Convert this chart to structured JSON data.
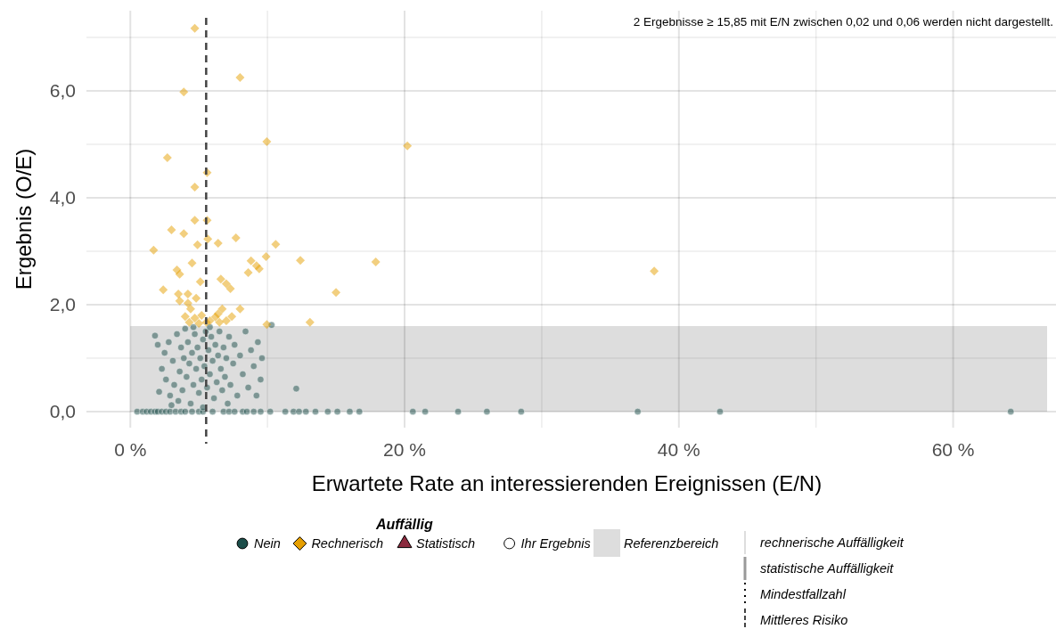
{
  "chart_data": {
    "type": "scatter",
    "xlabel": "Erwartete Rate an interessierenden Ereignissen (E/N)",
    "ylabel": "Ergebnis (O/E)",
    "legend_title": "Auffällig",
    "legend": "bottom",
    "grid": true,
    "xlim": [
      -3.2,
      67.5
    ],
    "ylim": [
      -0.3,
      7.5
    ],
    "xticks": [
      {
        "value": 0,
        "label": "0 %"
      },
      {
        "value": 10,
        "label": null
      },
      {
        "value": 20,
        "label": "20 %"
      },
      {
        "value": 30,
        "label": null
      },
      {
        "value": 40,
        "label": "40 %"
      },
      {
        "value": 50,
        "label": null
      },
      {
        "value": 60,
        "label": "60 %"
      }
    ],
    "yticks": [
      {
        "value": 0,
        "label": "0,0"
      },
      {
        "value": 1,
        "label": null
      },
      {
        "value": 2,
        "label": "2,0"
      },
      {
        "value": 3,
        "label": null
      },
      {
        "value": 4,
        "label": "4,0"
      },
      {
        "value": 5,
        "label": null
      },
      {
        "value": 6,
        "label": "6,0"
      },
      {
        "value": 7,
        "label": null
      }
    ],
    "series": [
      {
        "name": "Nein",
        "color": "#1b4d49",
        "marker": "circle",
        "x": [
          0.5,
          0.9,
          1.2,
          1.5,
          1.8,
          2.0,
          2.3,
          2.6,
          2.9,
          3.3,
          3.7,
          4.0,
          4.5,
          5.0,
          5.3,
          6.0,
          6.8,
          7.2,
          7.6,
          8.2,
          8.5,
          9.0,
          9.5,
          10.2,
          11.3,
          11.9,
          12.3,
          12.8,
          13.5,
          14.4,
          15.1,
          16.0,
          16.7,
          20.6,
          21.5,
          23.9,
          26.0,
          28.5,
          37.0,
          43.0,
          64.2,
          1.8,
          2.1,
          2.3,
          2.5,
          2.6,
          2.8,
          2.9,
          3.1,
          3.2,
          3.4,
          3.5,
          3.6,
          3.7,
          3.8,
          3.9,
          4.0,
          4.1,
          4.2,
          4.3,
          4.4,
          4.5,
          4.6,
          4.7,
          4.8,
          4.9,
          5.0,
          5.1,
          5.2,
          5.3,
          5.4,
          5.5,
          5.6,
          5.7,
          5.8,
          5.9,
          6.0,
          6.1,
          6.2,
          6.3,
          6.4,
          6.5,
          6.6,
          6.7,
          6.8,
          6.9,
          7.0,
          7.2,
          7.3,
          7.5,
          7.6,
          7.8,
          8.0,
          8.2,
          8.4,
          8.6,
          8.8,
          9.0,
          9.2,
          9.3,
          9.5,
          9.6,
          3.0,
          4.6,
          5.8,
          10.3,
          12.1,
          5.3,
          2.0,
          7.1
        ],
        "values": [
          0,
          0,
          0,
          0,
          0,
          0,
          0,
          0,
          0,
          0,
          0,
          0,
          0,
          0,
          0,
          0,
          0,
          0,
          0,
          0,
          0,
          0,
          0,
          0,
          0,
          0,
          0,
          0,
          0,
          0,
          0,
          0,
          0,
          0,
          0,
          0,
          0,
          0,
          0,
          0,
          0,
          1.42,
          0.37,
          0.8,
          1.1,
          0.6,
          1.3,
          0.3,
          0.95,
          0.5,
          1.45,
          0.2,
          0.75,
          1.2,
          0.4,
          1.0,
          1.55,
          0.65,
          1.3,
          0.9,
          0.15,
          1.1,
          0.5,
          1.45,
          0.8,
          1.2,
          0.35,
          1.0,
          0.6,
          1.35,
          0.85,
          1.5,
          0.45,
          1.15,
          0.7,
          1.4,
          0.95,
          0.25,
          1.25,
          0.55,
          1.05,
          1.5,
          0.8,
          0.4,
          1.2,
          0.65,
          1.0,
          1.4,
          0.5,
          0.9,
          1.25,
          0.3,
          1.05,
          0.7,
          1.5,
          0.45,
          1.15,
          0.85,
          0.3,
          1.3,
          0.6,
          1.0,
          0.12,
          1.58,
          1.58,
          1.62,
          0.43,
          0.08,
          1.25,
          0.15
        ]
      },
      {
        "name": "Rechnerisch",
        "color": "#e69f00",
        "marker": "diamond",
        "x": [
          4.7,
          8.0,
          3.9,
          9.95,
          20.2,
          2.7,
          5.6,
          4.7,
          4.7,
          5.6,
          3.0,
          3.9,
          7.7,
          5.65,
          6.4,
          4.9,
          10.6,
          1.7,
          4.5,
          9.9,
          8.8,
          9.2,
          9.4,
          12.4,
          17.9,
          38.2,
          3.4,
          3.6,
          6.6,
          8.6,
          7.0,
          7.3,
          2.4,
          5.1,
          15.0,
          3.5,
          4.2,
          3.6,
          4.2,
          4.8,
          4.4,
          8.0,
          6.7,
          13.1,
          9.95,
          4.0,
          4.7,
          5.2,
          6.2,
          6.4,
          5.8,
          4.3,
          5.0,
          5.55,
          6.5,
          7.0,
          7.4
        ],
        "values": [
          7.17,
          6.25,
          5.98,
          5.05,
          4.97,
          4.75,
          4.47,
          4.2,
          3.58,
          3.58,
          3.4,
          3.33,
          3.25,
          3.23,
          3.15,
          3.12,
          3.13,
          3.02,
          2.78,
          2.9,
          2.82,
          2.73,
          2.67,
          2.83,
          2.8,
          2.63,
          2.65,
          2.57,
          2.48,
          2.6,
          2.39,
          2.3,
          2.28,
          2.43,
          2.23,
          2.2,
          2.2,
          2.07,
          2.03,
          2.12,
          1.92,
          1.92,
          1.92,
          1.67,
          1.63,
          1.78,
          1.75,
          1.8,
          1.77,
          1.83,
          1.7,
          1.67,
          1.65,
          1.67,
          1.67,
          1.7,
          1.78
        ]
      },
      {
        "name": "Statistisch",
        "color": "#8b2a3e",
        "marker": "triangle"
      },
      {
        "name": "Ihr Ergebnis",
        "color": "#ffffff",
        "marker": "circle"
      }
    ],
    "bands": [
      {
        "axis": "y",
        "from": 0,
        "to": 1.6,
        "label": "Referenzbereich",
        "color": "#dddddd"
      }
    ],
    "ref_lines": [
      {
        "axis": "x",
        "value": 5.53,
        "label": "Mittleres Risiko",
        "line_style": "dashed",
        "color": "#444444"
      }
    ],
    "annotations": [
      "2 Ergebnisse ≥ 15,85 mit E/N zwischen 0,02 und 0,06 werden nicht dargestellt.",
      "rechnerische Auffälligkeit",
      "statistische Auffälligkeit",
      "Mindestfallzahl"
    ]
  }
}
